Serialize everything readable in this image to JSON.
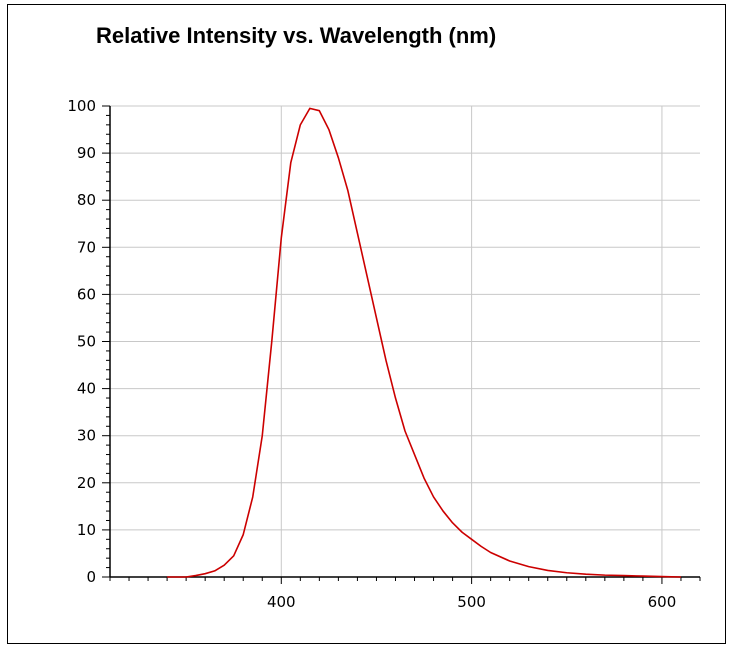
{
  "chart_data": {
    "type": "line",
    "title": "Relative Intensity vs. Wavelength (nm)",
    "xlabel": "",
    "ylabel": "",
    "xlim": [
      310,
      620
    ],
    "ylim": [
      0,
      100
    ],
    "x_ticks": [
      400,
      500,
      600
    ],
    "y_ticks": [
      0,
      10,
      20,
      30,
      40,
      50,
      60,
      70,
      80,
      90,
      100
    ],
    "grid": true,
    "line_color": "#cc0000",
    "grid_color": "#c8c8c8",
    "series": [
      {
        "x": [
          340,
          350,
          355,
          360,
          365,
          370,
          375,
          380,
          385,
          390,
          395,
          400,
          405,
          410,
          415,
          420,
          425,
          430,
          435,
          440,
          445,
          450,
          455,
          460,
          465,
          470,
          475,
          480,
          485,
          490,
          495,
          500,
          505,
          510,
          520,
          530,
          540,
          550,
          560,
          570,
          580,
          590,
          600,
          610
        ],
        "y": [
          0,
          0,
          0.3,
          0.7,
          1.3,
          2.5,
          4.5,
          9,
          17,
          30,
          50,
          72,
          88,
          96,
          99.5,
          99,
          95,
          89,
          82,
          73,
          64,
          55,
          46,
          38,
          31,
          26,
          21,
          17,
          14,
          11.5,
          9.5,
          8,
          6.5,
          5.2,
          3.4,
          2.2,
          1.4,
          0.9,
          0.6,
          0.4,
          0.3,
          0.2,
          0.1,
          0
        ]
      }
    ]
  }
}
